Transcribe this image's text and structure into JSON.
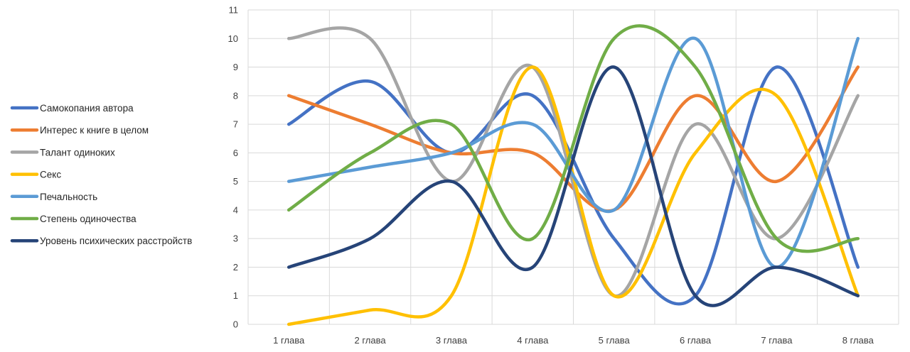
{
  "chart_data": {
    "type": "line",
    "smooth": true,
    "title": "",
    "xlabel": "",
    "ylabel": "",
    "ylim": [
      0,
      11
    ],
    "yticks": [
      0,
      1,
      2,
      3,
      4,
      5,
      6,
      7,
      8,
      9,
      10,
      11
    ],
    "grid": true,
    "legend_position": "left",
    "categories": [
      "1 глава",
      "2 глава",
      "3 глава",
      "4 глава",
      "5 глава",
      "6 глава",
      "7 глава",
      "8 глава"
    ],
    "series": [
      {
        "name": "Самокопания автора",
        "color": "#4472C4",
        "values": [
          7,
          8.5,
          6,
          8,
          3,
          1,
          9,
          2
        ]
      },
      {
        "name": "Интерес к книге в целом",
        "color": "#ED7D31",
        "values": [
          8,
          7,
          6,
          6,
          4,
          8,
          5,
          9
        ]
      },
      {
        "name": "Талант одиноких",
        "color": "#A5A5A5",
        "values": [
          10,
          10,
          5,
          9,
          1,
          7,
          3,
          8
        ]
      },
      {
        "name": "Секс",
        "color": "#FFC000",
        "values": [
          0,
          0.5,
          1,
          9,
          1,
          6,
          8,
          1
        ]
      },
      {
        "name": "Печальность",
        "color": "#5B9BD5",
        "values": [
          5,
          5.5,
          6,
          7,
          4,
          10,
          2,
          10
        ]
      },
      {
        "name": "Степень одиночества",
        "color": "#70AD47",
        "values": [
          4,
          6,
          7,
          3,
          10,
          9,
          3,
          3
        ]
      },
      {
        "name": "Уровень психических расстройств",
        "color": "#264478",
        "values": [
          2,
          3,
          5,
          2,
          9,
          1,
          2,
          1
        ]
      }
    ]
  }
}
